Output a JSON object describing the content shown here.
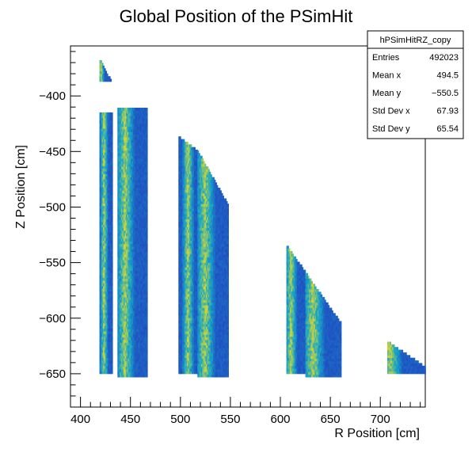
{
  "chart_data": {
    "type": "heatmap",
    "title": "Global Position of the PSimHit",
    "xlabel": "R Position [cm]",
    "ylabel": "Z Position [cm]",
    "xlim": [
      390,
      745
    ],
    "ylim": [
      -680,
      -355
    ],
    "x_ticks": [
      400,
      450,
      500,
      550,
      600,
      650,
      700
    ],
    "y_ticks": [
      -400,
      -450,
      -500,
      -550,
      -600,
      -650
    ],
    "colors": {
      "frame": "#000000",
      "low": "#1f4fc2",
      "mid": "#17a7c8",
      "high": "#c9d43a"
    },
    "regions": [
      {
        "x0": 419,
        "x1": 430,
        "y0": -387,
        "y1": -370,
        "x_peak": 420,
        "y_top_at_x0": -368,
        "y_top_at_x1": -387
      },
      {
        "x0": 419,
        "x1": 432,
        "y0": -650,
        "y1": -416,
        "x_peak": 423
      },
      {
        "x0": 437,
        "x1": 466,
        "y0": -653,
        "y1": -412,
        "x_peak": 444
      },
      {
        "x0": 498,
        "x1": 517,
        "y0": -650,
        "y1": -438,
        "x_peak": 507,
        "y_top_at_x0": -438,
        "y_top_at_x1": -450
      },
      {
        "x0": 517,
        "x1": 548,
        "y0": -653,
        "y1": -450,
        "x_peak": 524,
        "y_top_at_x0": -450,
        "y_top_at_x1": -500
      },
      {
        "x0": 606,
        "x1": 625,
        "y0": -650,
        "y1": -535,
        "x_peak": 610,
        "y_top_at_x0": -535,
        "y_top_at_x1": -560
      },
      {
        "x0": 625,
        "x1": 660,
        "y0": -653,
        "y1": -560,
        "x_peak": 632,
        "y_top_at_x0": -560,
        "y_top_at_x1": -605
      },
      {
        "x0": 707,
        "x1": 745,
        "y0": -650,
        "y1": -622,
        "x_peak": 709,
        "y_top_at_x0": -622,
        "y_top_at_x1": -645
      }
    ],
    "stats": {
      "name": "hPSimHitRZ_copy",
      "entries": [
        {
          "label": "Entries",
          "value": "492023"
        },
        {
          "label": "Mean x",
          "value": "494.5"
        },
        {
          "label": "Mean y",
          "value": "−550.5"
        },
        {
          "label": "Std Dev x",
          "value": "67.93"
        },
        {
          "label": "Std Dev y",
          "value": "65.54"
        }
      ]
    }
  }
}
